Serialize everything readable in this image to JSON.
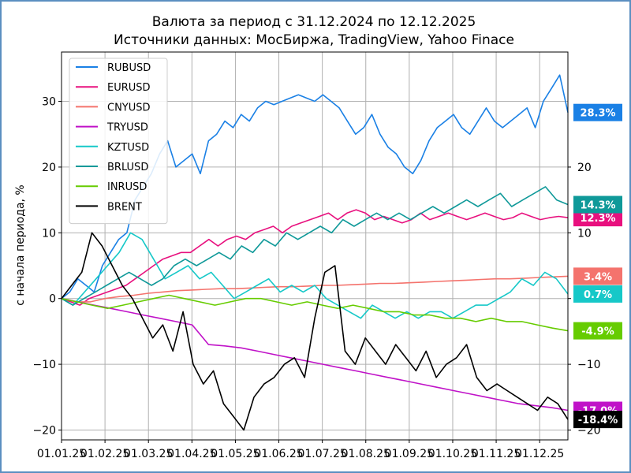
{
  "chart_data": {
    "type": "line",
    "title": "Валюта за период с 31.12.2024 по 12.12.2025",
    "subtitle": "Источники данных: МосБиржа, TradingView, Yahoo Finace",
    "ylabel": "с начала периода, %",
    "xlabel": "",
    "ylim": [
      -21.5,
      37.5
    ],
    "yticks": [
      -20,
      -10,
      0,
      10,
      20,
      30
    ],
    "yticks_right": [
      -20,
      -10,
      0,
      10,
      20
    ],
    "x_tick_labels": [
      "01.01.25",
      "01.02.25",
      "01.03.25",
      "01.04.25",
      "01.05.25",
      "01.06.25",
      "01.07.25",
      "01.08.25",
      "01.09.25",
      "01.10.25",
      "01.11.25",
      "01.12.25"
    ],
    "grid": true,
    "legend_position": "top-left",
    "series": [
      {
        "name": "RUBUSD",
        "color": "#1a80e5",
        "end_label": "28.3%",
        "end_value": 28.3,
        "values": [
          0,
          1,
          3,
          2,
          1,
          5,
          7,
          9,
          10,
          15,
          17,
          19,
          22,
          24,
          20,
          21,
          22,
          19,
          24,
          25,
          27,
          26,
          28,
          27,
          29,
          30,
          29.5,
          30,
          30.5,
          31,
          30.5,
          30,
          31,
          30,
          29,
          27,
          25,
          26,
          28,
          25,
          23,
          22,
          20,
          19,
          21,
          24,
          26,
          27,
          28,
          26,
          25,
          27,
          29,
          27,
          26,
          27,
          28,
          29,
          26,
          30,
          32,
          34,
          28.3
        ]
      },
      {
        "name": "EURUSD",
        "color": "#e8107e",
        "end_label": "12.3%",
        "end_value": 12.3,
        "values": [
          0,
          -0.5,
          -1,
          0,
          0.5,
          1,
          1.5,
          2,
          3,
          4,
          5,
          6,
          6.5,
          7,
          7,
          8,
          9,
          8,
          9,
          9.5,
          9,
          10,
          10.5,
          11,
          10,
          11,
          11.5,
          12,
          12.5,
          13,
          12,
          13,
          13.5,
          13,
          12,
          12.5,
          12,
          11.5,
          12,
          13,
          12,
          12.5,
          13,
          12.5,
          12,
          12.5,
          13,
          12.5,
          12,
          12.3,
          13,
          12.5,
          12,
          12.3,
          12.5,
          12.3
        ]
      },
      {
        "name": "CNYUSD",
        "color": "#f4736d",
        "end_label": "3.4%",
        "end_value": 3.4,
        "values": [
          0,
          -0.5,
          -0.5,
          0,
          0.3,
          0.5,
          0.8,
          1,
          1.2,
          1.3,
          1.4,
          1.5,
          1.5,
          1.6,
          1.7,
          1.8,
          1.8,
          1.9,
          2,
          2,
          2.1,
          2.2,
          2.3,
          2.3,
          2.4,
          2.5,
          2.6,
          2.7,
          2.8,
          2.9,
          3,
          3,
          3.1,
          3.2,
          3.3,
          3.4
        ]
      },
      {
        "name": "TRYUSD",
        "color": "#c012c8",
        "end_label": "-17.0%",
        "end_value": -17.0,
        "values": [
          0,
          -0.5,
          -1,
          -1.5,
          -2,
          -2.5,
          -3,
          -3.5,
          -4,
          -7,
          -7.2,
          -7.5,
          -8,
          -8.5,
          -9,
          -9.5,
          -10,
          -10.5,
          -11,
          -11.5,
          -12,
          -12.5,
          -13,
          -13.5,
          -14,
          -14.5,
          -15,
          -15.5,
          -16,
          -16.3,
          -16.6,
          -17
        ]
      },
      {
        "name": "KZTUSD",
        "color": "#16c8c8",
        "end_label": "0.7%",
        "end_value": 0.7,
        "values": [
          0,
          -1,
          1,
          3,
          5,
          7,
          10,
          9,
          6,
          3,
          4,
          5,
          3,
          4,
          2,
          0,
          1,
          2,
          3,
          1,
          2,
          1,
          2,
          0,
          -1,
          -2,
          -3,
          -1,
          -2,
          -3,
          -2,
          -3,
          -2,
          -2,
          -3,
          -2,
          -1,
          -1,
          0,
          1,
          3,
          2,
          4,
          3,
          0.7
        ]
      },
      {
        "name": "BRLUSD",
        "color": "#0f9999",
        "end_label": "14.3%",
        "end_value": 14.3,
        "values": [
          0,
          -1,
          0,
          1,
          2,
          3,
          4,
          3,
          2,
          3,
          5,
          6,
          5,
          6,
          7,
          6,
          8,
          7,
          9,
          8,
          10,
          9,
          10,
          11,
          10,
          12,
          11,
          12,
          13,
          12,
          13,
          12,
          13,
          14,
          13,
          14,
          15,
          14,
          15,
          16,
          14,
          15,
          16,
          17,
          15,
          14.3
        ]
      },
      {
        "name": "INRUSD",
        "color": "#66cc00",
        "end_label": "-4.9%",
        "end_value": -4.9,
        "values": [
          0,
          -0.5,
          -1,
          -1.5,
          -1,
          -0.5,
          0,
          0.5,
          0,
          -0.5,
          -1,
          -0.5,
          0,
          0,
          -0.5,
          -1,
          -0.5,
          -1,
          -1.5,
          -1,
          -1.5,
          -2,
          -2,
          -2.5,
          -2.5,
          -3,
          -3,
          -3.5,
          -3,
          -3.5,
          -3.5,
          -4,
          -4.5,
          -4.9
        ]
      },
      {
        "name": "BRENT",
        "color": "#000000",
        "end_label": "-18.4%",
        "end_value": -18.4,
        "values": [
          0,
          2,
          4,
          10,
          8,
          5,
          2,
          0,
          -3,
          -6,
          -4,
          -8,
          -2,
          -10,
          -13,
          -11,
          -16,
          -18,
          -20,
          -15,
          -13,
          -12,
          -10,
          -9,
          -12,
          -3,
          4,
          5,
          -8,
          -10,
          -6,
          -8,
          -10,
          -7,
          -9,
          -11,
          -8,
          -12,
          -10,
          -9,
          -7,
          -12,
          -14,
          -13,
          -14,
          -15,
          -16,
          -17,
          -15,
          -16,
          -18.4
        ]
      }
    ]
  }
}
